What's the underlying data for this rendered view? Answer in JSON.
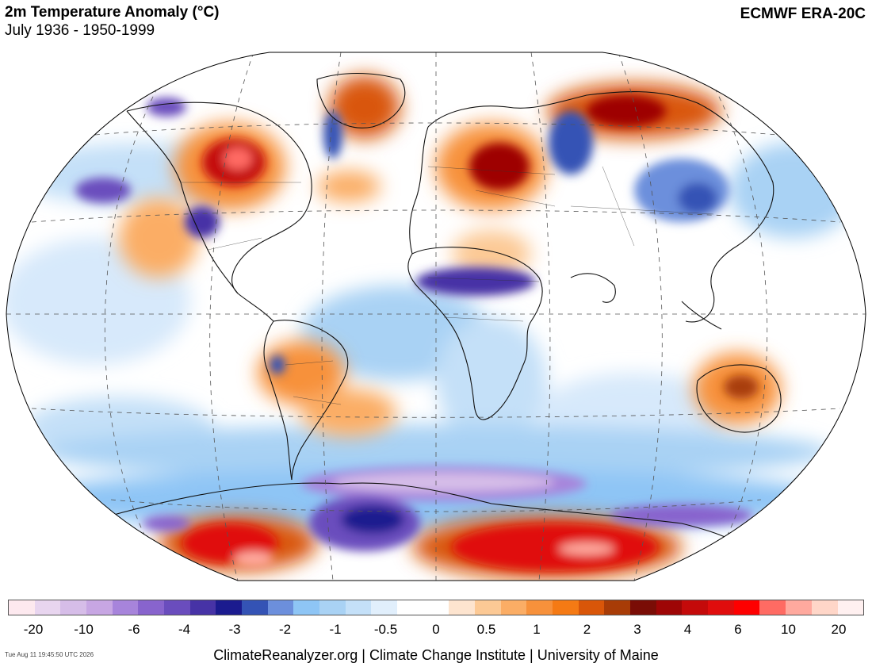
{
  "header": {
    "title": "2m Temperature Anomaly (°C)",
    "subtitle": "July 1936 - 1950-1999",
    "source": "ECMWF ERA-20C"
  },
  "map": {
    "projection": "Robinson",
    "features": [
      "graticule",
      "coastlines",
      "country-borders",
      "anomaly-shading"
    ],
    "anomaly_regions": [
      {
        "name": "central-north-america",
        "sign": "positive",
        "strength": "strong"
      },
      {
        "name": "eastern-europe-western-russia",
        "sign": "positive",
        "strength": "strong"
      },
      {
        "name": "central-siberia",
        "sign": "positive",
        "strength": "strong"
      },
      {
        "name": "greenland",
        "sign": "positive",
        "strength": "moderate"
      },
      {
        "name": "australia",
        "sign": "positive",
        "strength": "moderate"
      },
      {
        "name": "central-south-america",
        "sign": "positive",
        "strength": "moderate"
      },
      {
        "name": "antarctica-pacific-sector",
        "sign": "positive",
        "strength": "strong"
      },
      {
        "name": "antarctica-east",
        "sign": "positive",
        "strength": "strong"
      },
      {
        "name": "sahel",
        "sign": "negative",
        "strength": "moderate"
      },
      {
        "name": "northeast-pacific",
        "sign": "negative",
        "strength": "moderate"
      },
      {
        "name": "eastern-siberia-china",
        "sign": "negative",
        "strength": "moderate"
      },
      {
        "name": "antarctic-sea-ice-zone",
        "sign": "negative",
        "strength": "strong"
      }
    ]
  },
  "colorbar": {
    "colors": [
      "#fde9ef",
      "#e8d5ef",
      "#d6bde8",
      "#c7a6e3",
      "#a784db",
      "#8864cd",
      "#6a4dbd",
      "#4733a6",
      "#1b1b8f",
      "#3453b5",
      "#6c8fdc",
      "#8ec5f5",
      "#a9d2f4",
      "#c4e0f8",
      "#e1effc",
      "#ffffff",
      "#ffffff",
      "#fde4cf",
      "#fcc995",
      "#fbad65",
      "#f7913b",
      "#f57a14",
      "#d95609",
      "#a83c07",
      "#7a0d06",
      "#9e0606",
      "#c40a0a",
      "#e00d0d",
      "#fe0000",
      "#ff6b63",
      "#ffa99e",
      "#ffd6c8",
      "#fff0f0"
    ],
    "tick_labels": [
      "-20",
      "-10",
      "-6",
      "-4",
      "-3",
      "-2",
      "-1",
      "-0.5",
      "0",
      "0.5",
      "1",
      "2",
      "3",
      "4",
      "6",
      "10",
      "20"
    ]
  },
  "footer": {
    "credit": "ClimateReanalyzer.org | Climate Change Institute | University of Maine",
    "timestamp": "Tue Aug 11 19:45:50 UTC 2026"
  }
}
